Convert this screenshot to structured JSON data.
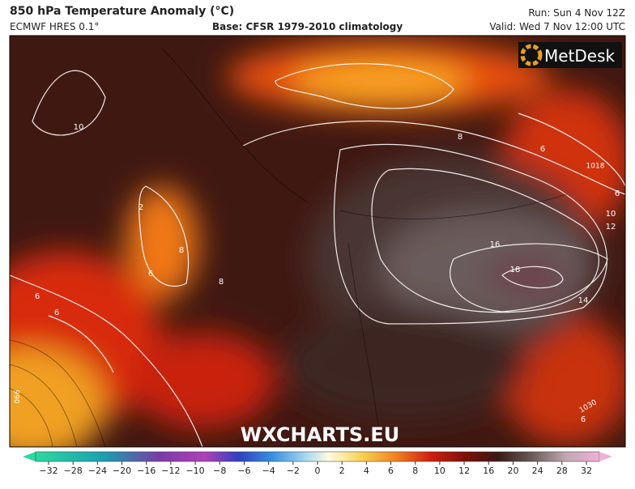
{
  "header": {
    "title": "850 hPa Temperature Anomaly (°C)",
    "model": "ECMWF HRES 0.1°",
    "base": "Base: CFSR 1979-2010 climatology",
    "run": "Run: Sun 4 Nov 12Z",
    "valid": "Valid: Wed 7 Nov 12:00 UTC"
  },
  "logo": "MetDesk",
  "watermark": "WXCHARTS.EU",
  "contour_labels": [
    "10",
    "2",
    "8",
    "8",
    "6",
    "6",
    "6",
    "8",
    "6",
    "1018",
    "6",
    "10",
    "12",
    "16",
    "18",
    "14",
    "990",
    "1030",
    "6"
  ],
  "colorbar": {
    "ticks": [
      "−32",
      "−28",
      "−24",
      "−20",
      "−16",
      "−12",
      "−10",
      "−8",
      "−6",
      "−4",
      "−2",
      "0",
      "2",
      "4",
      "6",
      "8",
      "10",
      "12",
      "16",
      "20",
      "24",
      "28",
      "32"
    ]
  }
}
